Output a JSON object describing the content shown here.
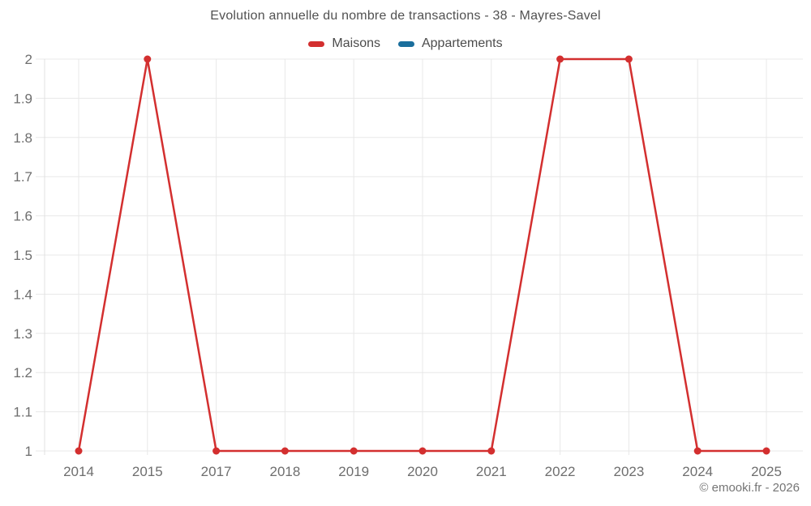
{
  "chart": {
    "title": "Evolution annuelle du nombre de transactions - 38 - Mayres-Savel",
    "legend": [
      "Maisons",
      "Appartements"
    ]
  },
  "footer": {
    "credit": "© emooki.fr - 2026"
  },
  "colors": {
    "maisons": "#d32f2f",
    "appartements": "#1a6e9c",
    "grid": "#e8e8e8",
    "axis_line": "#e0e0e0",
    "axis_text": "#6e6e6e",
    "title_text": "#515151"
  },
  "chart_data": {
    "type": "line",
    "title": "Evolution annuelle du nombre de transactions - 38 - Mayres-Savel",
    "categories": [
      "2014",
      "2015",
      "2017",
      "2018",
      "2019",
      "2020",
      "2021",
      "2022",
      "2023",
      "2024",
      "2025"
    ],
    "series": [
      {
        "name": "Maisons",
        "color": "#d32f2f",
        "values": [
          1,
          2,
          1,
          1,
          1,
          1,
          1,
          2,
          2,
          1,
          1
        ]
      },
      {
        "name": "Appartements",
        "color": "#1a6e9c",
        "values": []
      }
    ],
    "xlabel": "",
    "ylabel": "",
    "ylim": [
      1,
      2
    ],
    "ytick_step": 0.1,
    "grid": true,
    "legend_position": "top",
    "marker": "circle",
    "annotation": "© emooki.fr - 2026"
  }
}
